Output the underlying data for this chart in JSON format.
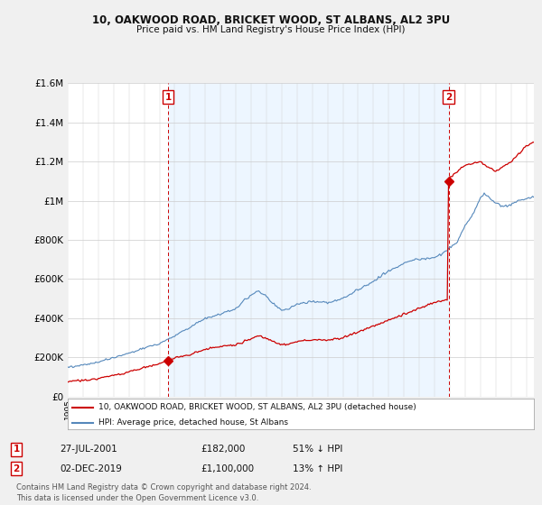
{
  "title": "10, OAKWOOD ROAD, BRICKET WOOD, ST ALBANS, AL2 3PU",
  "subtitle": "Price paid vs. HM Land Registry's House Price Index (HPI)",
  "property_label": "10, OAKWOOD ROAD, BRICKET WOOD, ST ALBANS, AL2 3PU (detached house)",
  "hpi_label": "HPI: Average price, detached house, St Albans",
  "sale1_date": "27-JUL-2001",
  "sale1_price": 182000,
  "sale1_pct": "51% ↓ HPI",
  "sale1_year": 2001.575,
  "sale2_date": "02-DEC-2019",
  "sale2_price": 1100000,
  "sale2_pct": "13% ↑ HPI",
  "sale2_year": 2019.917,
  "red_color": "#cc0000",
  "blue_color": "#5588bb",
  "shade_color": "#ddeeff",
  "background_color": "#f0f0f0",
  "plot_bg_color": "#ffffff",
  "footer_text": "Contains HM Land Registry data © Crown copyright and database right 2024.\nThis data is licensed under the Open Government Licence v3.0.",
  "ylim": [
    0,
    1600000
  ],
  "ytick_step": 200000,
  "xlim_start": 1995.0,
  "xlim_end": 2025.5
}
